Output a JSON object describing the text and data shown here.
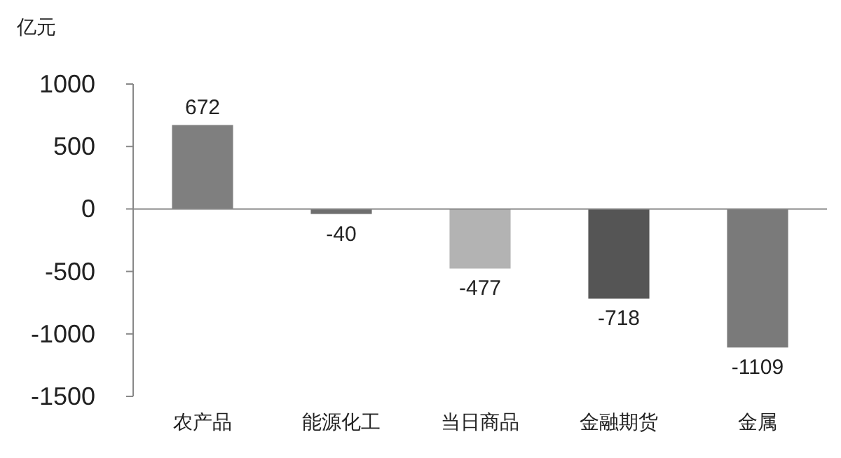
{
  "chart_data": {
    "type": "bar",
    "ylabel": "亿元",
    "categories": [
      "农产品",
      "能源化工",
      "当日商品",
      "金融期货",
      "金属"
    ],
    "values": [
      672,
      -40,
      -477,
      -718,
      -1109
    ],
    "colors": [
      "#7f7f7f",
      "#6e6e6e",
      "#b3b3b3",
      "#555555",
      "#7a7a7a"
    ],
    "ylim": [
      -1500,
      1000
    ],
    "yticks": [
      -1500,
      -1000,
      -500,
      0,
      500,
      1000
    ],
    "data_labels": true
  }
}
